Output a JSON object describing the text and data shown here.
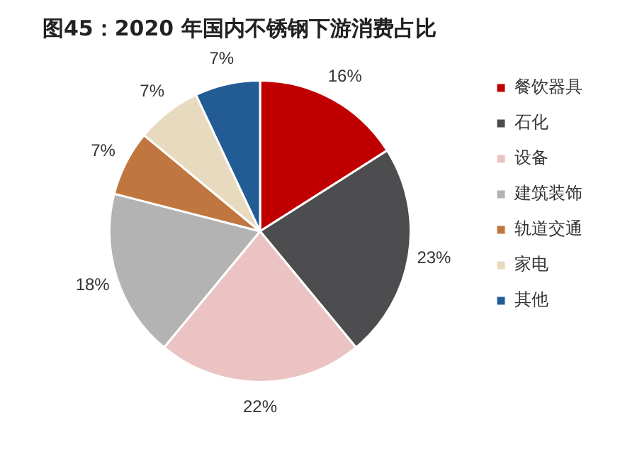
{
  "chart_data": {
    "type": "pie",
    "title": "图45：2020 年国内不锈钢下游消费占比",
    "categories": [
      "餐饮器具",
      "石化",
      "设备",
      "建筑装饰",
      "轨道交通",
      "家电",
      "其他"
    ],
    "values": [
      16,
      23,
      22,
      18,
      7,
      7,
      7
    ],
    "value_labels": [
      "16%",
      "23%",
      "22%",
      "18%",
      "7%",
      "7%",
      "7%"
    ],
    "colors": [
      "#c00000",
      "#4d4d4f",
      "#ebc3c3",
      "#b3b3b3",
      "#c0773f",
      "#e8dabf",
      "#235c94"
    ],
    "legend": "right"
  }
}
